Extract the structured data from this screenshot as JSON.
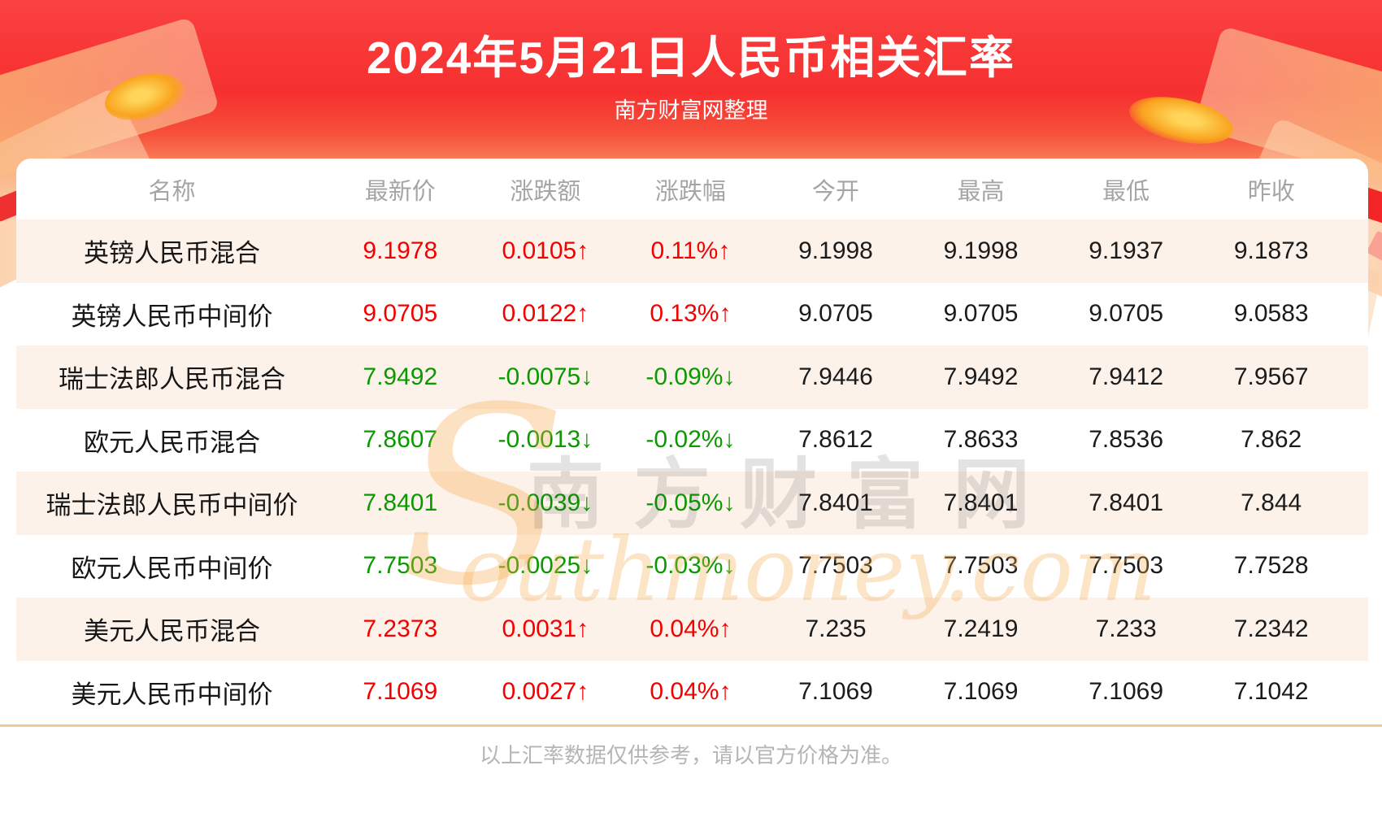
{
  "header": {
    "title": "2024年5月21日人民币相关汇率",
    "subtitle": "南方财富网整理"
  },
  "table": {
    "columns": [
      "名称",
      "最新价",
      "涨跌额",
      "涨跌幅",
      "今开",
      "最高",
      "最低",
      "昨收"
    ],
    "rows": [
      {
        "name": "英镑人民币混合",
        "latest": "9.1978",
        "change": "0.0105↑",
        "change_pct": "0.11%↑",
        "direction": "up",
        "open": "9.1998",
        "high": "9.1998",
        "low": "9.1937",
        "prev_close": "9.1873"
      },
      {
        "name": "英镑人民币中间价",
        "latest": "9.0705",
        "change": "0.0122↑",
        "change_pct": "0.13%↑",
        "direction": "up",
        "open": "9.0705",
        "high": "9.0705",
        "low": "9.0705",
        "prev_close": "9.0583"
      },
      {
        "name": "瑞士法郎人民币混合",
        "latest": "7.9492",
        "change": "-0.0075↓",
        "change_pct": "-0.09%↓",
        "direction": "down",
        "open": "7.9446",
        "high": "7.9492",
        "low": "7.9412",
        "prev_close": "7.9567"
      },
      {
        "name": "欧元人民币混合",
        "latest": "7.8607",
        "change": "-0.0013↓",
        "change_pct": "-0.02%↓",
        "direction": "down",
        "open": "7.8612",
        "high": "7.8633",
        "low": "7.8536",
        "prev_close": "7.862"
      },
      {
        "name": "瑞士法郎人民币中间价",
        "latest": "7.8401",
        "change": "-0.0039↓",
        "change_pct": "-0.05%↓",
        "direction": "down",
        "open": "7.8401",
        "high": "7.8401",
        "low": "7.8401",
        "prev_close": "7.844"
      },
      {
        "name": "欧元人民币中间价",
        "latest": "7.7503",
        "change": "-0.0025↓",
        "change_pct": "-0.03%↓",
        "direction": "down",
        "open": "7.7503",
        "high": "7.7503",
        "low": "7.7503",
        "prev_close": "7.7528"
      },
      {
        "name": "美元人民币混合",
        "latest": "7.2373",
        "change": "0.0031↑",
        "change_pct": "0.04%↑",
        "direction": "up",
        "open": "7.235",
        "high": "7.2419",
        "low": "7.233",
        "prev_close": "7.2342"
      },
      {
        "name": "美元人民币中间价",
        "latest": "7.1069",
        "change": "0.0027↑",
        "change_pct": "0.04%↑",
        "direction": "up",
        "open": "7.1069",
        "high": "7.1069",
        "low": "7.1069",
        "prev_close": "7.1042"
      }
    ]
  },
  "watermark": {
    "initial": "S",
    "cn": "南方财富网",
    "en": "outhmoney.com"
  },
  "footer": {
    "note": "以上汇率数据仅供参考，请以官方价格为准。"
  },
  "colors": {
    "up": "#f50000",
    "down": "#0a9a00",
    "stripe": "#fdf2ea",
    "divider": "#f2c894"
  }
}
